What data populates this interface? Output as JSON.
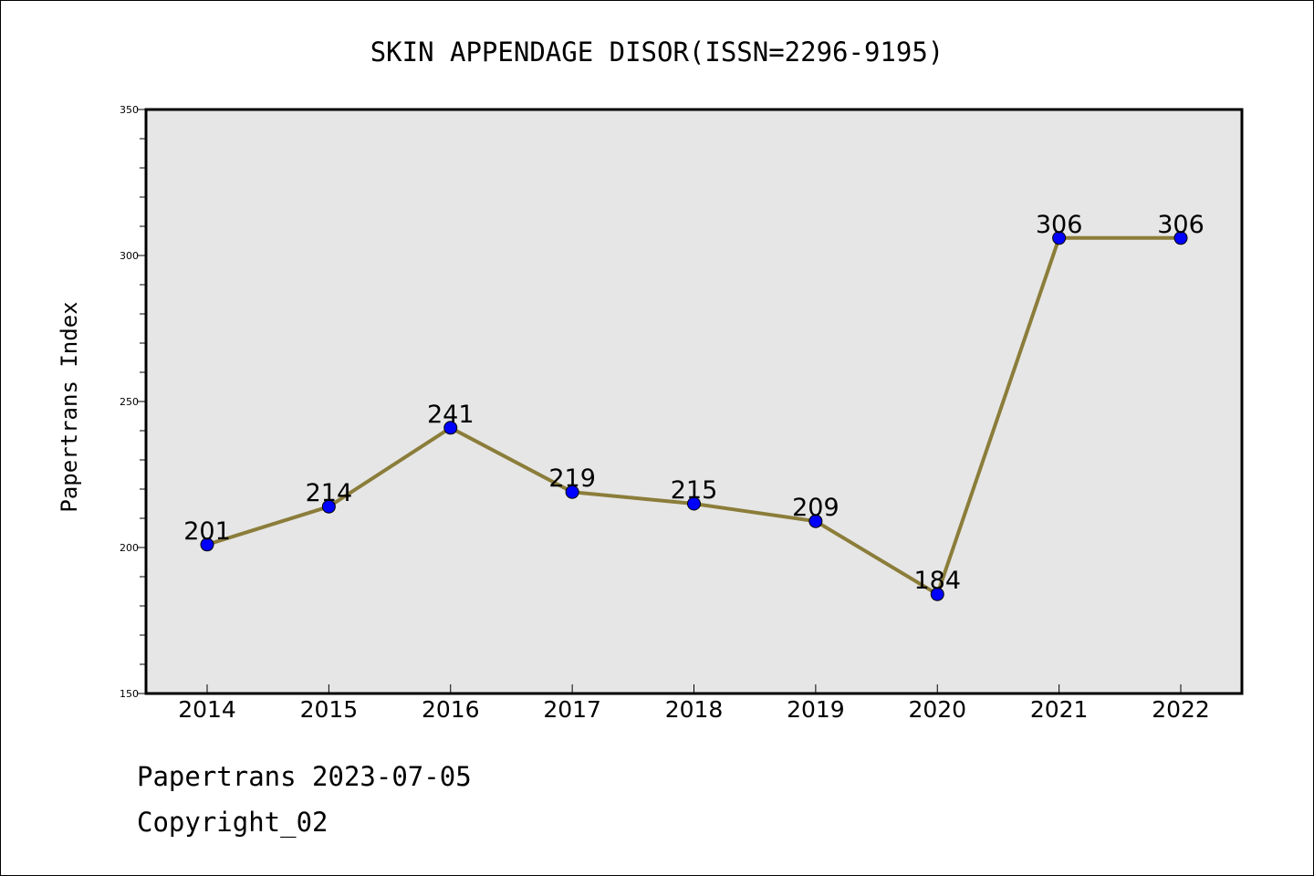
{
  "chart_data": {
    "type": "line",
    "title": "SKIN APPENDAGE DISOR(ISSN=2296-9195)",
    "xlabel": "",
    "ylabel": "Papertrans Index",
    "categories": [
      "2014",
      "2015",
      "2016",
      "2017",
      "2018",
      "2019",
      "2020",
      "2021",
      "2022"
    ],
    "series": [
      {
        "values": [
          201,
          214,
          241,
          219,
          215,
          209,
          184,
          306,
          306
        ]
      }
    ],
    "data_labels": [
      "201",
      "214",
      "241",
      "219",
      "215",
      "209",
      "184",
      "306",
      "306"
    ],
    "ylim": [
      150,
      350
    ],
    "y_ticks": [
      150,
      200,
      250,
      300,
      350
    ],
    "y_tick_labels": [
      "150",
      "200",
      "250",
      "300",
      "350"
    ],
    "grid": false,
    "legend": "none",
    "colors": {
      "line": "#8b7d3a",
      "marker": "#0000ff",
      "plot_background": "#e6e6e6",
      "axis": "#000000"
    }
  },
  "footer": {
    "line1": "Papertrans 2023-07-05",
    "line2": "Copyright_02"
  }
}
